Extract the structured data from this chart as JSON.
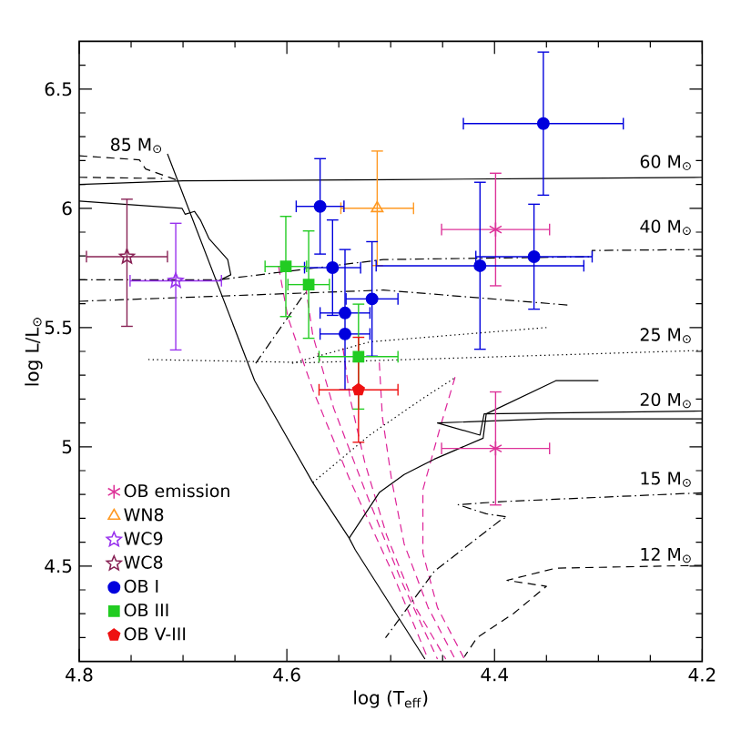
{
  "chart_data": {
    "type": "scatter",
    "xlabel": "log (T$_{eff}$)",
    "ylabel": "log L/L$_{⊙}$",
    "xlim": [
      4.8,
      4.2
    ],
    "ylim": [
      4.1,
      6.7
    ],
    "xticks": [
      4.8,
      {
        "value": 4.75,
        "label": null
      },
      {
        "value": 4.7,
        "label": null
      },
      {
        "value": 4.65,
        "label": null
      },
      4.6,
      {
        "value": 4.55,
        "label": null
      },
      {
        "value": 4.5,
        "label": null
      },
      {
        "value": 4.45,
        "label": null
      },
      4.4,
      {
        "value": 4.35,
        "label": null
      },
      {
        "value": 4.3,
        "label": null
      },
      {
        "value": 4.25,
        "label": null
      },
      4.2
    ],
    "yticks": [
      {
        "value": 4.2,
        "label": null
      },
      {
        "value": 4.3,
        "label": null
      },
      {
        "value": 4.4,
        "label": null
      },
      4.5,
      {
        "value": 4.6,
        "label": null
      },
      {
        "value": 4.7,
        "label": null
      },
      {
        "value": 4.8,
        "label": null
      },
      {
        "value": 4.9,
        "label": null
      },
      5,
      {
        "value": 5.1,
        "label": null
      },
      {
        "value": 5.2,
        "label": null
      },
      {
        "value": 5.3,
        "label": null
      },
      {
        "value": 5.4,
        "label": null
      },
      5.5,
      {
        "value": 5.6,
        "label": null
      },
      {
        "value": 5.7,
        "label": null
      },
      {
        "value": 5.8,
        "label": null
      },
      {
        "value": 5.9,
        "label": null
      },
      6,
      {
        "value": 6.1,
        "label": null
      },
      {
        "value": 6.2,
        "label": null
      },
      {
        "value": 6.3,
        "label": null
      },
      {
        "value": 6.4,
        "label": null
      },
      6.5,
      {
        "value": 6.6,
        "label": null
      }
    ],
    "legend": "bottom left",
    "annotations": [
      "85 M$_{⊙}$",
      "60 M$_{⊙}$",
      "40 M$_{⊙}$",
      "25 M$_{⊙}$",
      "20 M$_{⊙}$",
      "15 M$_{⊙}$",
      "12 M$_{⊙}$"
    ],
    "series": [
      {
        "type": "line",
        "color": "#dd2299",
        "line_style": "dashed",
        "x": [
          4.608,
          4.599,
          4.575,
          4.539,
          4.499,
          4.464
        ],
        "values": [
          5.756,
          5.543,
          5.239,
          4.858,
          4.478,
          4.11
        ]
      },
      {
        "type": "line",
        "color": "#dd2299",
        "line_style": "dashed",
        "x": [
          4.582,
          4.575,
          4.555,
          4.525,
          4.49,
          4.455
        ],
        "values": [
          5.673,
          5.467,
          5.163,
          4.82,
          4.44,
          4.11
        ]
      },
      {
        "type": "line",
        "color": "#dd2299",
        "line_style": "dashed",
        "x": [
          4.546,
          4.539,
          4.525,
          4.504,
          4.476,
          4.447
        ],
        "values": [
          5.414,
          5.201,
          4.935,
          4.63,
          4.326,
          4.11
        ]
      },
      {
        "type": "line",
        "color": "#dd2299",
        "line_style": "dashed",
        "x": [
          4.511,
          4.508,
          4.499,
          4.487,
          4.464,
          4.438
        ],
        "values": [
          5.353,
          5.125,
          4.858,
          4.592,
          4.326,
          4.11
        ]
      },
      {
        "type": "line",
        "color": "#dd2299",
        "line_style": "dashed",
        "x": [
          4.438,
          4.452,
          4.469,
          4.469,
          4.455,
          4.429
        ],
        "values": [
          5.292,
          5.087,
          4.82,
          4.554,
          4.326,
          4.11
        ]
      },
      {
        "type": "line",
        "color": "#000000",
        "line_style": "solid",
        "x": [
          4.715,
          4.631,
          4.575,
          4.54,
          4.534,
          4.467
        ],
        "values": [
          6.228,
          5.277,
          4.85,
          4.617,
          4.567,
          4.11
        ]
      },
      {
        "type": "line",
        "color": "#000000",
        "line_style": "dashed",
        "x": [
          4.8,
          4.742,
          4.736,
          4.707
        ],
        "values": [
          6.22,
          6.203,
          6.165,
          6.12
        ]
      },
      {
        "type": "line",
        "color": "#000000",
        "line_style": "dashed",
        "x": [
          4.8,
          4.72
        ],
        "values": [
          6.13,
          6.125
        ]
      },
      {
        "type": "line",
        "color": "#000000",
        "line_style": "solid",
        "x": [
          4.2,
          4.35,
          4.5,
          4.7,
          4.8
        ],
        "values": [
          6.13,
          6.125,
          6.12,
          6.115,
          6.1
        ]
      },
      {
        "type": "line",
        "color": "#000000",
        "line_style": "solid",
        "x": [
          4.8,
          4.701,
          4.698,
          4.689,
          4.683,
          4.675,
          4.657,
          4.654,
          4.666
        ],
        "values": [
          6.03,
          6.0,
          5.975,
          5.987,
          5.949,
          5.873,
          5.785,
          5.721,
          5.696
        ]
      },
      {
        "type": "line",
        "color": "#000000",
        "line_style": "dashdotted",
        "x": [
          4.2,
          4.306,
          4.306,
          4.507,
          4.666,
          4.8
        ],
        "values": [
          5.827,
          5.823,
          5.797,
          5.785,
          5.7,
          5.7
        ]
      },
      {
        "type": "line",
        "color": "#000000",
        "line_style": "dashdotted",
        "x": [
          4.8,
          4.507,
          4.329
        ],
        "values": [
          5.61,
          5.657,
          5.594
        ]
      },
      {
        "type": "line",
        "color": "#000000",
        "line_style": "dashdotted",
        "x": [
          4.63,
          4.577
        ],
        "values": [
          5.35,
          5.68
        ]
      },
      {
        "type": "line",
        "color": "#000000",
        "line_style": "dotted",
        "x": [
          4.2,
          4.578,
          4.736
        ],
        "values": [
          5.404,
          5.353,
          5.366
        ]
      },
      {
        "type": "line",
        "color": "#000000",
        "line_style": "dotted",
        "x": [
          4.595,
          4.52,
          4.35
        ],
        "values": [
          5.35,
          5.44,
          5.5
        ]
      },
      {
        "type": "line",
        "color": "#000000",
        "line_style": "dotted",
        "x": [
          4.575,
          4.52,
          4.47,
          4.438
        ],
        "values": [
          4.85,
          5.05,
          5.2,
          5.29
        ]
      },
      {
        "type": "line",
        "color": "#000000",
        "line_style": "solid",
        "x": [
          4.54,
          4.511,
          4.487,
          4.458,
          4.411,
          4.408,
          4.341,
          4.3
        ],
        "values": [
          4.617,
          4.808,
          4.884,
          4.948,
          5.036,
          5.138,
          5.277,
          5.277
        ]
      },
      {
        "type": "line",
        "color": "#000000",
        "line_style": "solid",
        "x": [
          4.2,
          4.41,
          4.414,
          4.455,
          4.35,
          4.2
        ],
        "values": [
          5.15,
          5.138,
          5.049,
          5.1,
          5.117,
          5.117
        ]
      },
      {
        "type": "line",
        "color": "#000000",
        "line_style": "dashdotted",
        "x": [
          4.2,
          4.394,
          4.435,
          4.408,
          4.388,
          4.394,
          4.458,
          4.505
        ],
        "values": [
          4.807,
          4.77,
          4.757,
          4.719,
          4.706,
          4.693,
          4.478,
          4.199
        ]
      },
      {
        "type": "line",
        "color": "#000000",
        "line_style": "dashed",
        "x": [
          4.2,
          4.341,
          4.388,
          4.35,
          4.382,
          4.417,
          4.429
        ],
        "values": [
          4.503,
          4.491,
          4.44,
          4.415,
          4.3,
          4.199,
          4.12
        ]
      },
      {
        "name": "OB emission",
        "color": "#dd3399",
        "marker": "cross",
        "x": [
          4.399,
          4.399
        ],
        "values": [
          5.911,
          4.993
        ],
        "xerrors": [
          0.052,
          0.052
        ],
        "errors": [
          0.236,
          0.237
        ]
      },
      {
        "name": "WN8",
        "color": "#ff9922",
        "marker": "triangle",
        "x": [
          4.513
        ],
        "values": [
          6.0
        ],
        "xerrors": [
          0.035
        ],
        "errors": [
          0.24
        ]
      },
      {
        "name": "WC9",
        "color": "#9933ee",
        "marker": "star",
        "x": [
          4.707
        ],
        "values": [
          5.696
        ],
        "xerrors": [
          0.044
        ],
        "errors": [
          [
            5.406,
            5.937
          ]
        ]
      },
      {
        "name": "WC8",
        "color": "#882255",
        "marker": "star",
        "x": [
          4.754
        ],
        "values": [
          5.797
        ],
        "xerrors": [
          0.039
        ],
        "errors": [
          [
            5.505,
            6.038
          ]
        ]
      },
      {
        "name": "OB I",
        "color": "#0000dd",
        "marker": "circle",
        "x": [
          4.353,
          4.568,
          4.556,
          4.544,
          4.544,
          4.518,
          4.414,
          4.362
        ],
        "values": [
          6.355,
          6.008,
          5.751,
          5.561,
          5.473,
          5.62,
          5.759,
          5.797
        ],
        "xerrors": [
          0.077,
          0.023,
          0.027,
          0.024,
          0.024,
          0.025,
          0.1,
          0.056
        ],
        "errors": [
          0.3,
          0.2,
          0.2,
          [
            5.239,
            5.827
          ],
          null,
          0.24,
          0.35,
          0.22
        ]
      },
      {
        "name": "OB III",
        "color": "#22cc22",
        "marker": "square",
        "x": [
          4.601,
          4.579,
          4.531
        ],
        "values": [
          5.756,
          5.68,
          5.378
        ],
        "xerrors": [
          0.02,
          0.02,
          0.038
        ],
        "errors": [
          0.21,
          0.225,
          0.22
        ]
      },
      {
        "name": "OB V-III",
        "color": "#ee1111",
        "x": [
          4.531
        ],
        "values": [
          5.239
        ],
        "xerrors": [
          0.038
        ],
        "errors": [
          0.22
        ]
      }
    ]
  }
}
